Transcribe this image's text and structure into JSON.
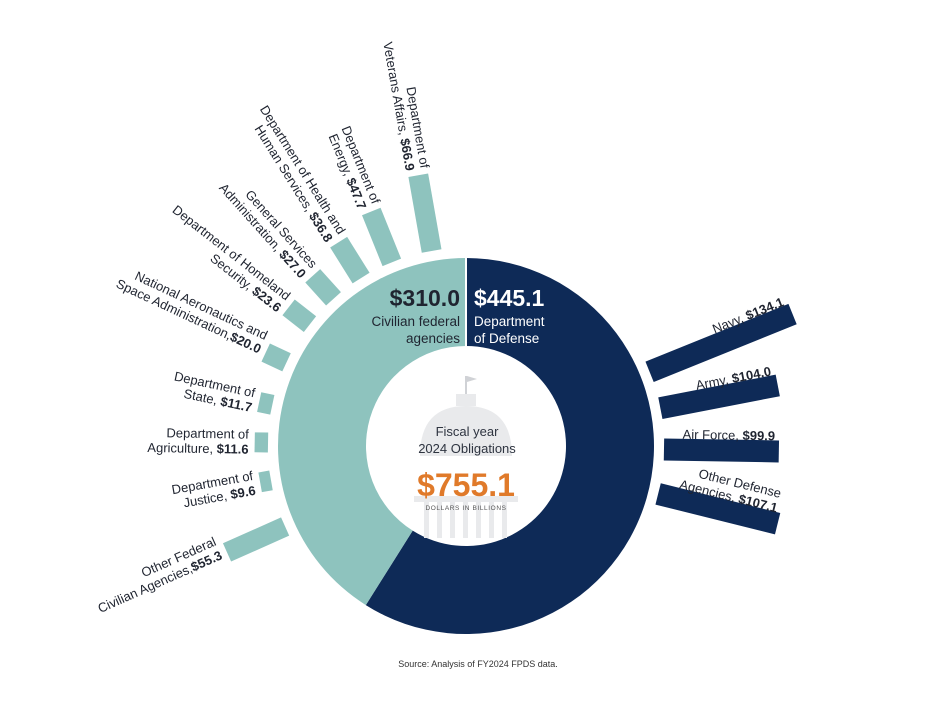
{
  "chart_data": {
    "type": "radial-bar-donut",
    "center": {
      "line1": "Fiscal year",
      "line2": "2024 Obligations",
      "total": "$755.1",
      "units": "DOLLARS IN BILLIONS"
    },
    "segments": [
      {
        "name": "Department of Defense",
        "value": 445.1,
        "value_label": "$445.1",
        "line1": "Department",
        "line2": "of Defense",
        "color": "#0e2a57"
      },
      {
        "name": "Civilian federal agencies",
        "value": 310.0,
        "value_label": "$310.0",
        "line1": "Civilian federal",
        "line2": "agencies",
        "color": "#8ec3be"
      }
    ],
    "defense_bars": [
      {
        "lines": [
          "Navy, "
        ],
        "value_label": "$134.1",
        "value": 134.1
      },
      {
        "lines": [
          "Army, "
        ],
        "value_label": "$104.0",
        "value": 104.0
      },
      {
        "lines": [
          "Air Force, "
        ],
        "value_label": "$99.9",
        "value": 99.9
      },
      {
        "lines": [
          "Other Defense",
          "Agencies, "
        ],
        "value_label": "$107.1",
        "value": 107.1
      }
    ],
    "civilian_bars": [
      {
        "lines": [
          "Department of",
          "Veterans Affairs, "
        ],
        "value_label": "$66.9",
        "value": 66.9
      },
      {
        "lines": [
          "Department of",
          "Energy, "
        ],
        "value_label": "$47.7",
        "value": 47.7
      },
      {
        "lines": [
          "Department of Health and",
          "Human Services, "
        ],
        "value_label": "$36.8",
        "value": 36.8
      },
      {
        "lines": [
          "General Services",
          "Administration, "
        ],
        "value_label": "$27.0",
        "value": 27.0
      },
      {
        "lines": [
          "Department of Homeland",
          "Security, "
        ],
        "value_label": "$23.6",
        "value": 23.6
      },
      {
        "lines": [
          "National Aeronautics and",
          "Space Administration,",
          ""
        ],
        "value_label": "$20.0",
        "value": 20.0
      },
      {
        "lines": [
          "Department of",
          "State, "
        ],
        "value_label": "$11.7",
        "value": 11.7
      },
      {
        "lines": [
          "Department of",
          "Agriculture, "
        ],
        "value_label": "$11.6",
        "value": 11.6
      },
      {
        "lines": [
          "Department of",
          "Justice, "
        ],
        "value_label": "$9.6",
        "value": 9.6
      },
      {
        "lines": [
          "Other Federal",
          "Civilian Agencies,",
          ""
        ],
        "value_label": "$55.3",
        "value": 55.3
      }
    ],
    "source": "Source: Analysis of FY2024 FPDS data.",
    "colors": {
      "defense": "#0e2a57",
      "civilian": "#8ec3be",
      "total": "#e07a2a",
      "dome": "#e9eaec"
    }
  }
}
